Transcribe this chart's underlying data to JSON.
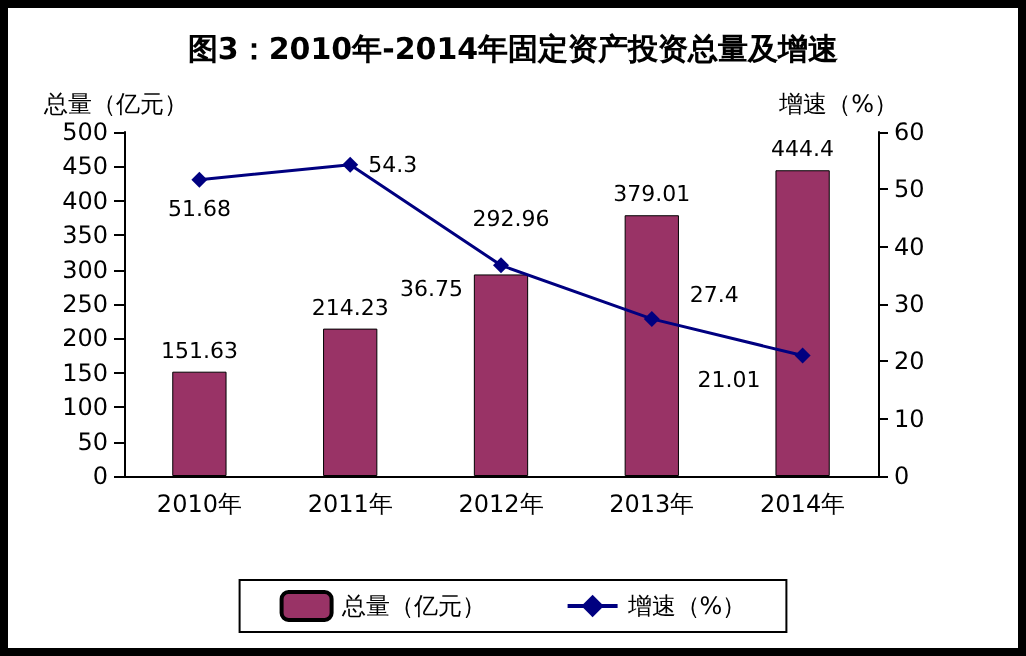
{
  "chart_data": {
    "type": "bar",
    "title": "图3：2010年-2014年固定资产投资总量及增速",
    "ylabel": "总量（亿元）",
    "y2label": "增速（%）",
    "categories": [
      "2010年",
      "2011年",
      "2012年",
      "2013年",
      "2014年"
    ],
    "series": [
      {
        "name": "总量（亿元）",
        "color": "#993366",
        "values": [
          151.63,
          214.23,
          292.96,
          379.01,
          444.4
        ]
      },
      {
        "name": "增速（%）",
        "type": "line",
        "axis": "y2",
        "color": "#000080",
        "marker": "diamond",
        "values": [
          51.68,
          54.3,
          36.75,
          27.4,
          21.01
        ]
      }
    ],
    "ylim": [
      0,
      500
    ],
    "yticks": [
      0,
      50,
      100,
      150,
      200,
      250,
      300,
      350,
      400,
      450,
      500
    ],
    "y2lim": [
      0,
      60
    ],
    "y2ticks": [
      0,
      10,
      20,
      30,
      40,
      50,
      60
    ],
    "data_labels": true,
    "grid": false,
    "legend": "bottom"
  }
}
